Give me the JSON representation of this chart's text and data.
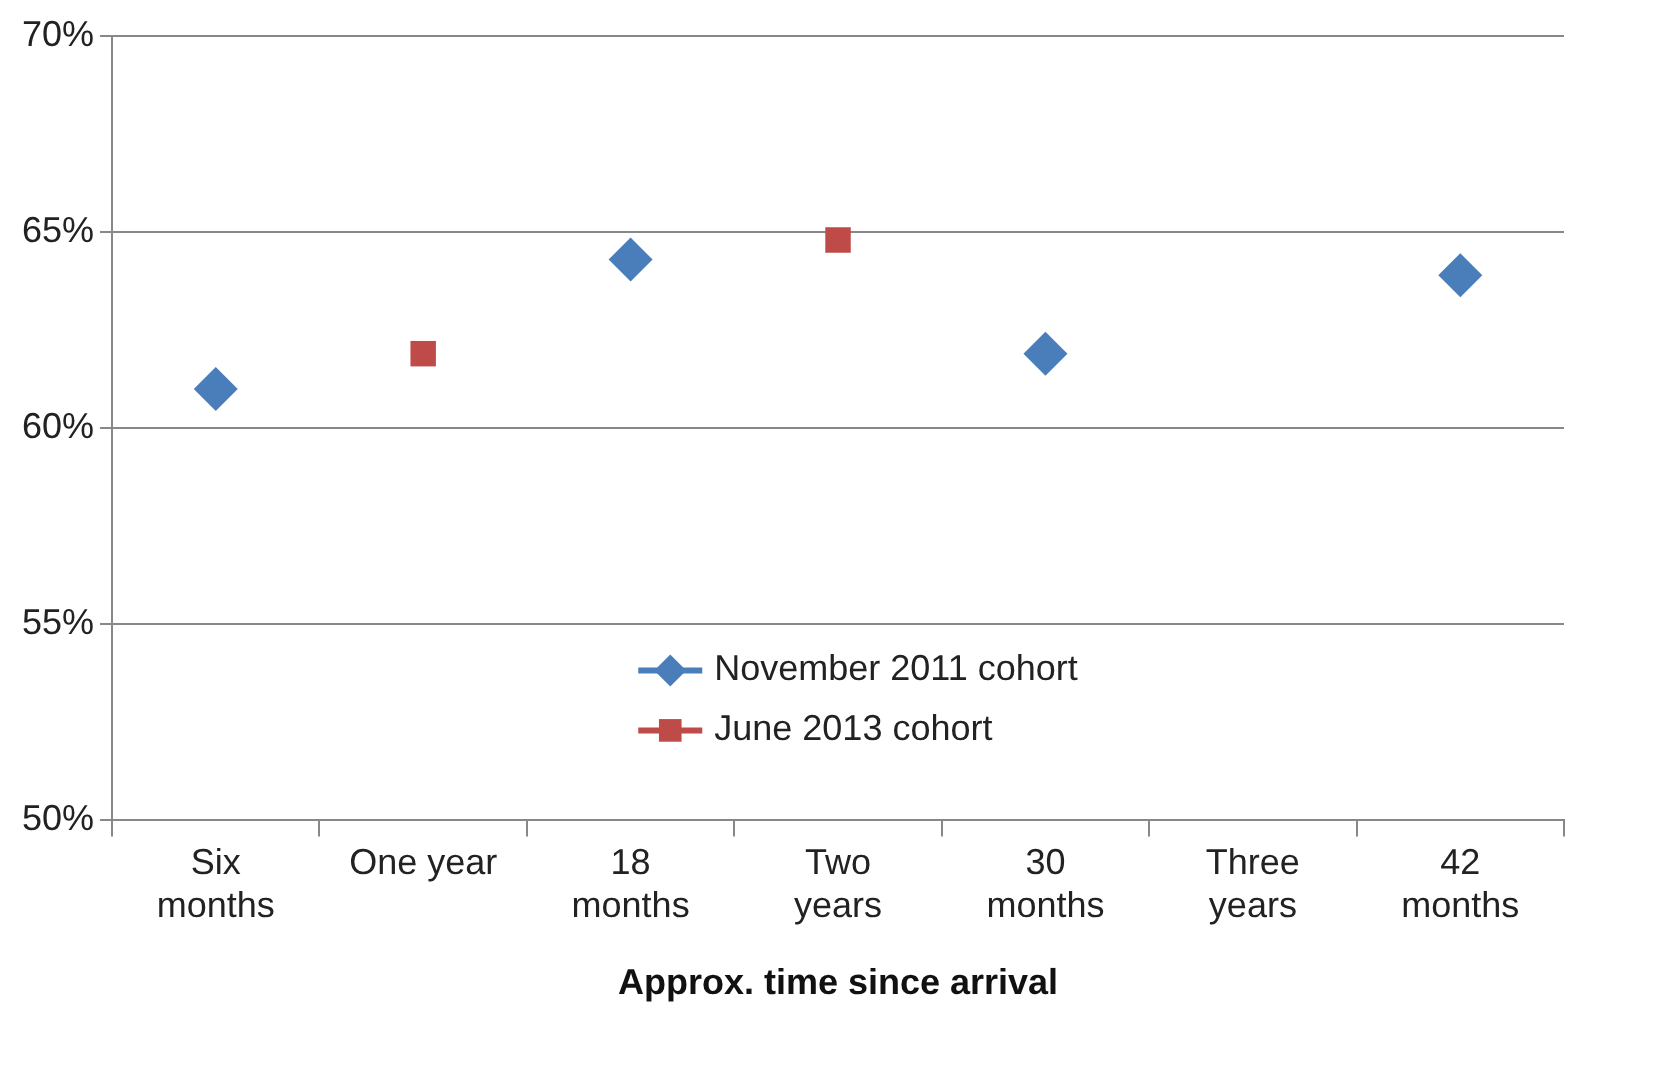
{
  "chart_data": {
    "type": "scatter",
    "xlabel": "Approx. time since arrival",
    "categories": [
      "Six months",
      "One year",
      "18 months",
      "Two years",
      "30 months",
      "Three years",
      "42 months"
    ],
    "series": [
      {
        "name": "November 2011 cohort",
        "color": "#4a7ebb",
        "marker": "diamond",
        "values": [
          61.0,
          null,
          64.3,
          null,
          61.9,
          null,
          63.9
        ]
      },
      {
        "name": "June 2013 cohort",
        "color": "#be4b48",
        "marker": "square",
        "values": [
          null,
          61.9,
          null,
          64.8,
          null,
          null,
          null
        ]
      }
    ],
    "ylim": [
      50,
      70
    ],
    "yticks": [
      {
        "value": 50,
        "label": "50%"
      },
      {
        "value": 55,
        "label": "55%"
      },
      {
        "value": 60,
        "label": "60%"
      },
      {
        "value": 65,
        "label": "65%"
      },
      {
        "value": 70,
        "label": "70%"
      }
    ],
    "grid": "y",
    "legend": "bottom"
  }
}
